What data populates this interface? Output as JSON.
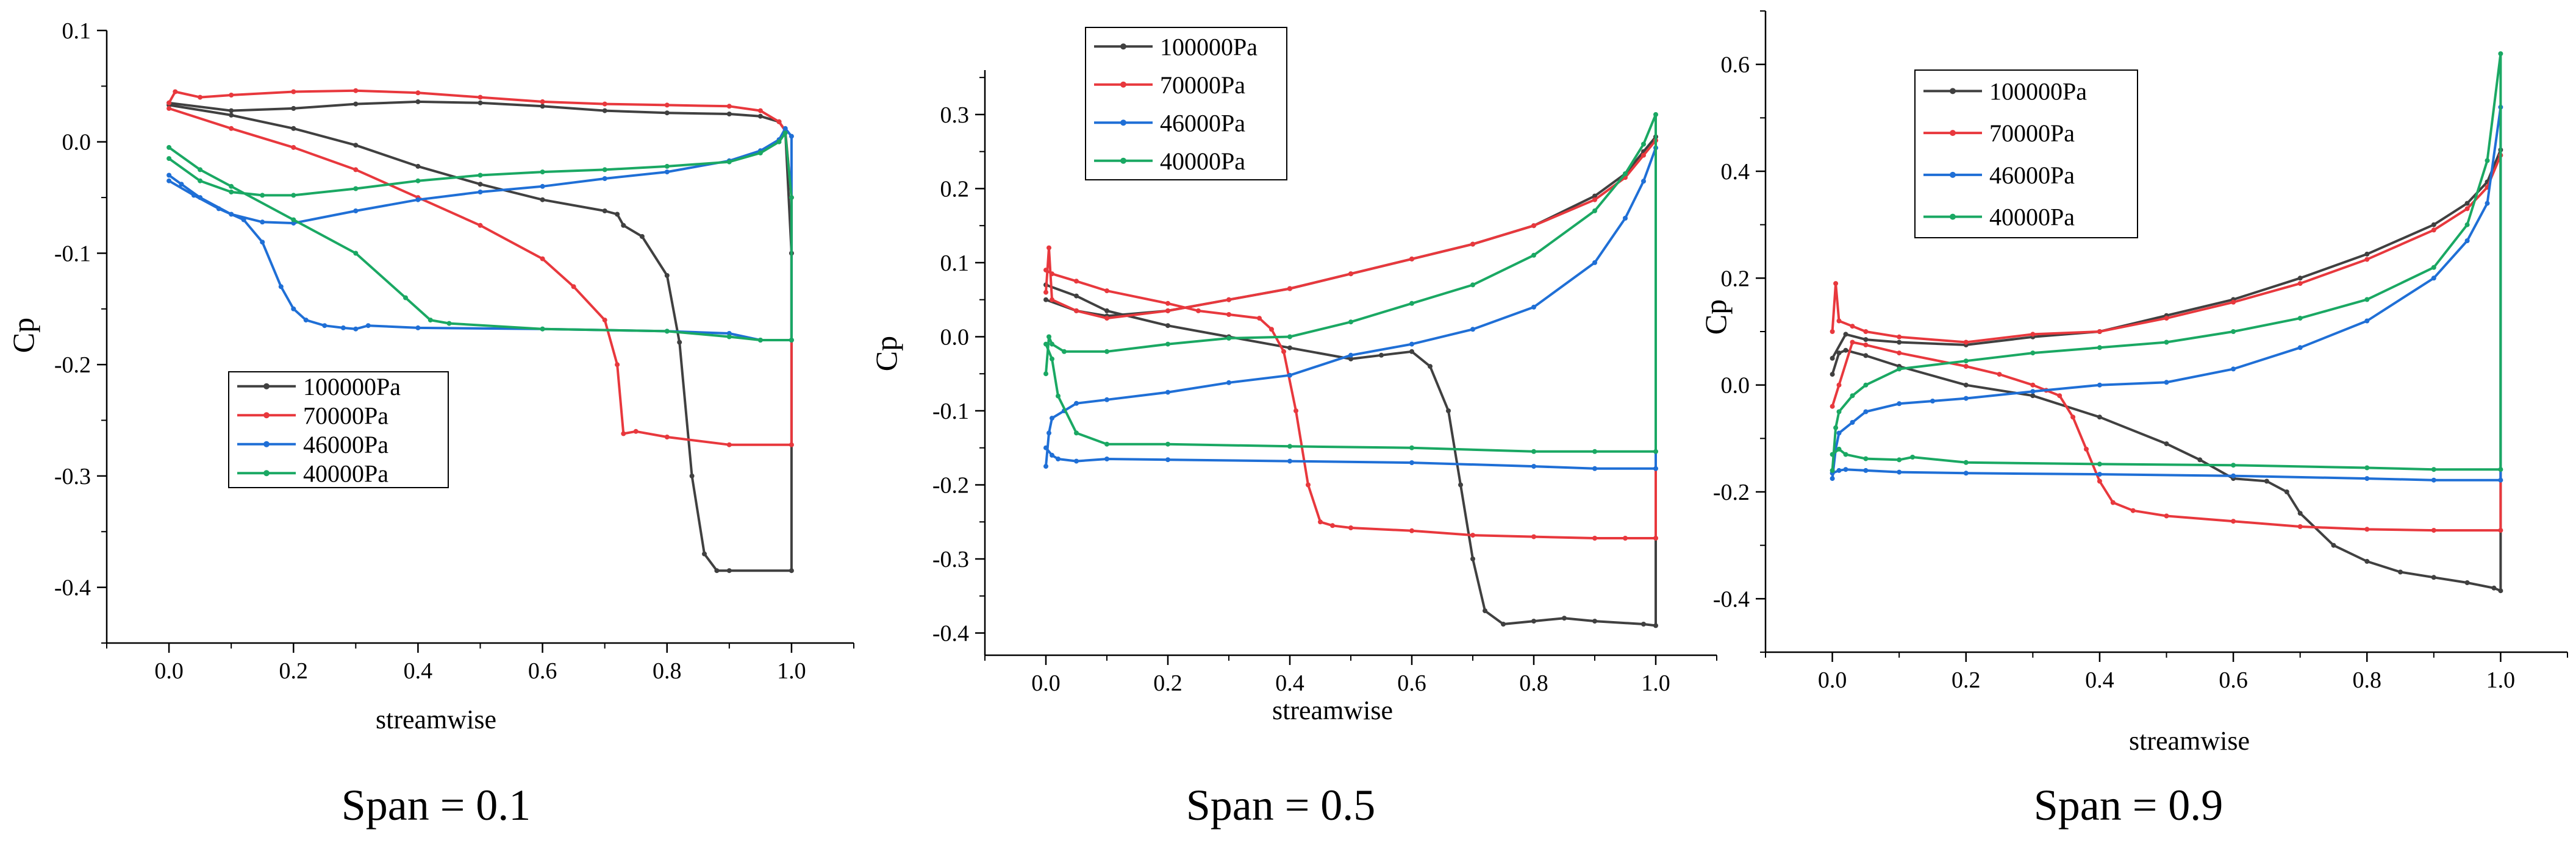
{
  "chart_data": [
    {
      "type": "line",
      "caption": "Span = 0.1",
      "xlabel": "streamwise",
      "ylabel": "Cp",
      "xlim": [
        -0.1,
        1.1
      ],
      "ylim": [
        -0.45,
        0.1
      ],
      "xticks": [
        0.0,
        0.2,
        0.4,
        0.6,
        0.8,
        1.0
      ],
      "xtick_labels": [
        "0.0",
        "0.2",
        "0.4",
        "0.6",
        "0.8",
        "1.0"
      ],
      "yticks": [
        -0.4,
        -0.3,
        -0.2,
        -0.1,
        0.0,
        0.1
      ],
      "ytick_labels": [
        "-0.4",
        "-0.3",
        "-0.2",
        "-0.1",
        "0.0",
        "0.1"
      ],
      "legend_position": "lower-center",
      "series": [
        {
          "name": "100000Pa",
          "color": "#404040",
          "x": [
            0.0,
            0.1,
            0.2,
            0.3,
            0.4,
            0.5,
            0.6,
            0.7,
            0.8,
            0.9,
            0.95,
            0.98,
            0.99,
            1.0,
            1.0,
            0.9,
            0.88,
            0.86,
            0.84,
            0.82,
            0.8,
            0.76,
            0.73,
            0.72,
            0.7,
            0.6,
            0.5,
            0.4,
            0.3,
            0.2,
            0.1,
            0.0
          ],
          "y": [
            0.035,
            0.028,
            0.03,
            0.034,
            0.036,
            0.035,
            0.032,
            0.028,
            0.026,
            0.025,
            0.023,
            0.018,
            0.01,
            -0.1,
            -0.385,
            -0.385,
            -0.385,
            -0.37,
            -0.3,
            -0.18,
            -0.12,
            -0.085,
            -0.075,
            -0.065,
            -0.062,
            -0.052,
            -0.038,
            -0.022,
            -0.003,
            0.012,
            0.024,
            0.033
          ]
        },
        {
          "name": "70000Pa",
          "color": "#e8383d",
          "x": [
            0.0,
            0.01,
            0.05,
            0.1,
            0.2,
            0.3,
            0.4,
            0.5,
            0.6,
            0.7,
            0.8,
            0.9,
            0.95,
            0.98,
            0.99,
            1.0,
            1.0,
            0.9,
            0.8,
            0.75,
            0.73,
            0.72,
            0.7,
            0.65,
            0.6,
            0.5,
            0.4,
            0.3,
            0.2,
            0.1,
            0.0
          ],
          "y": [
            0.035,
            0.045,
            0.04,
            0.042,
            0.045,
            0.046,
            0.044,
            0.04,
            0.036,
            0.034,
            0.033,
            0.032,
            0.028,
            0.018,
            0.01,
            -0.05,
            -0.272,
            -0.272,
            -0.265,
            -0.26,
            -0.262,
            -0.2,
            -0.16,
            -0.13,
            -0.105,
            -0.075,
            -0.05,
            -0.025,
            -0.005,
            0.012,
            0.03
          ]
        },
        {
          "name": "46000Pa",
          "color": "#1f6fd6",
          "x": [
            0.0,
            0.02,
            0.05,
            0.1,
            0.15,
            0.2,
            0.3,
            0.4,
            0.5,
            0.6,
            0.7,
            0.8,
            0.9,
            0.95,
            0.98,
            0.99,
            1.0,
            1.0,
            0.95,
            0.9,
            0.8,
            0.6,
            0.4,
            0.32,
            0.3,
            0.28,
            0.25,
            0.22,
            0.2,
            0.18,
            0.15,
            0.12,
            0.08,
            0.04,
            0.0
          ],
          "y": [
            -0.03,
            -0.038,
            -0.05,
            -0.065,
            -0.072,
            -0.073,
            -0.062,
            -0.052,
            -0.045,
            -0.04,
            -0.033,
            -0.027,
            -0.017,
            -0.008,
            0.002,
            0.012,
            0.005,
            -0.178,
            -0.178,
            -0.172,
            -0.17,
            -0.168,
            -0.167,
            -0.165,
            -0.168,
            -0.167,
            -0.165,
            -0.16,
            -0.15,
            -0.13,
            -0.09,
            -0.07,
            -0.06,
            -0.048,
            -0.035
          ]
        },
        {
          "name": "40000Pa",
          "color": "#1aa863",
          "x": [
            0.0,
            0.05,
            0.1,
            0.15,
            0.2,
            0.3,
            0.4,
            0.5,
            0.6,
            0.7,
            0.8,
            0.9,
            0.95,
            0.98,
            0.99,
            1.0,
            1.0,
            0.95,
            0.9,
            0.8,
            0.6,
            0.45,
            0.42,
            0.38,
            0.3,
            0.2,
            0.1,
            0.05,
            0.0
          ],
          "y": [
            -0.015,
            -0.035,
            -0.045,
            -0.048,
            -0.048,
            -0.042,
            -0.035,
            -0.03,
            -0.027,
            -0.025,
            -0.022,
            -0.018,
            -0.01,
            0.0,
            0.008,
            -0.05,
            -0.178,
            -0.178,
            -0.175,
            -0.17,
            -0.168,
            -0.163,
            -0.16,
            -0.14,
            -0.1,
            -0.07,
            -0.04,
            -0.025,
            -0.005
          ]
        }
      ]
    },
    {
      "type": "line",
      "caption": "Span = 0.5",
      "xlabel": "streamwise",
      "ylabel": "Cp",
      "xlim": [
        -0.1,
        1.1
      ],
      "ylim": [
        -0.43,
        0.36
      ],
      "xticks": [
        0.0,
        0.2,
        0.4,
        0.6,
        0.8,
        1.0
      ],
      "xtick_labels": [
        "0.0",
        "0.2",
        "0.4",
        "0.6",
        "0.8",
        "1.0"
      ],
      "yticks": [
        -0.4,
        -0.3,
        -0.2,
        -0.1,
        0.0,
        0.1,
        0.2,
        0.3
      ],
      "ytick_labels": [
        "-0.4",
        "-0.3",
        "-0.2",
        "-0.1",
        "0.0",
        "0.1",
        "0.2",
        "0.3"
      ],
      "legend_position": "top-left",
      "series": [
        {
          "name": "100000Pa",
          "color": "#404040",
          "x": [
            0.0,
            0.05,
            0.1,
            0.2,
            0.3,
            0.4,
            0.5,
            0.6,
            0.7,
            0.8,
            0.9,
            0.95,
            0.98,
            1.0,
            1.0,
            0.98,
            0.9,
            0.85,
            0.8,
            0.75,
            0.72,
            0.7,
            0.68,
            0.66,
            0.63,
            0.6,
            0.55,
            0.5,
            0.4,
            0.3,
            0.2,
            0.1,
            0.05,
            0.0
          ],
          "y": [
            0.05,
            0.035,
            0.028,
            0.035,
            0.05,
            0.065,
            0.085,
            0.105,
            0.125,
            0.15,
            0.19,
            0.22,
            0.25,
            0.27,
            -0.39,
            -0.388,
            -0.384,
            -0.38,
            -0.384,
            -0.388,
            -0.37,
            -0.3,
            -0.2,
            -0.1,
            -0.04,
            -0.02,
            -0.025,
            -0.03,
            -0.015,
            0.0,
            0.015,
            0.035,
            0.055,
            0.07
          ]
        },
        {
          "name": "70000Pa",
          "color": "#e8383d",
          "x": [
            0.0,
            0.005,
            0.01,
            0.05,
            0.1,
            0.2,
            0.3,
            0.4,
            0.5,
            0.6,
            0.7,
            0.8,
            0.9,
            0.95,
            0.98,
            1.0,
            1.0,
            0.95,
            0.9,
            0.8,
            0.7,
            0.6,
            0.5,
            0.47,
            0.45,
            0.43,
            0.41,
            0.39,
            0.37,
            0.35,
            0.3,
            0.25,
            0.2,
            0.1,
            0.05,
            0.01,
            0.0
          ],
          "y": [
            0.06,
            0.12,
            0.05,
            0.035,
            0.025,
            0.035,
            0.05,
            0.065,
            0.085,
            0.105,
            0.125,
            0.15,
            0.185,
            0.215,
            0.245,
            0.265,
            -0.272,
            -0.272,
            -0.272,
            -0.27,
            -0.268,
            -0.262,
            -0.258,
            -0.255,
            -0.25,
            -0.2,
            -0.1,
            -0.02,
            0.01,
            0.025,
            0.03,
            0.035,
            0.045,
            0.062,
            0.075,
            0.085,
            0.09
          ]
        },
        {
          "name": "46000Pa",
          "color": "#1f6fd6",
          "x": [
            0.0,
            0.005,
            0.01,
            0.03,
            0.05,
            0.1,
            0.2,
            0.3,
            0.4,
            0.5,
            0.6,
            0.7,
            0.8,
            0.9,
            0.95,
            0.98,
            1.0,
            1.0,
            0.9,
            0.8,
            0.6,
            0.4,
            0.2,
            0.1,
            0.05,
            0.02,
            0.01,
            0.0
          ],
          "y": [
            -0.175,
            -0.13,
            -0.11,
            -0.1,
            -0.09,
            -0.085,
            -0.075,
            -0.062,
            -0.052,
            -0.025,
            -0.01,
            0.01,
            0.04,
            0.1,
            0.16,
            0.21,
            0.255,
            -0.178,
            -0.178,
            -0.175,
            -0.17,
            -0.168,
            -0.166,
            -0.165,
            -0.168,
            -0.165,
            -0.16,
            -0.15
          ]
        },
        {
          "name": "40000Pa",
          "color": "#1aa863",
          "x": [
            0.0,
            0.005,
            0.01,
            0.03,
            0.1,
            0.2,
            0.3,
            0.4,
            0.5,
            0.6,
            0.7,
            0.8,
            0.9,
            0.95,
            0.98,
            1.0,
            1.0,
            0.9,
            0.8,
            0.6,
            0.4,
            0.2,
            0.1,
            0.05,
            0.02,
            0.01,
            0.0
          ],
          "y": [
            -0.05,
            0.0,
            -0.01,
            -0.02,
            -0.02,
            -0.01,
            -0.002,
            0.0,
            0.02,
            0.045,
            0.07,
            0.11,
            0.17,
            0.22,
            0.26,
            0.3,
            -0.155,
            -0.155,
            -0.155,
            -0.15,
            -0.148,
            -0.145,
            -0.145,
            -0.13,
            -0.08,
            -0.03,
            -0.01
          ]
        }
      ]
    },
    {
      "type": "line",
      "caption": "Span = 0.9",
      "xlabel": "streamwise",
      "ylabel": "Cp",
      "xlim": [
        -0.1,
        1.1
      ],
      "ylim": [
        -0.5,
        0.7
      ],
      "xticks": [
        0.0,
        0.2,
        0.4,
        0.6,
        0.8,
        1.0
      ],
      "xtick_labels": [
        "0.0",
        "0.2",
        "0.4",
        "0.6",
        "0.8",
        "1.0"
      ],
      "yticks": [
        -0.4,
        -0.2,
        0.0,
        0.2,
        0.4,
        0.6
      ],
      "ytick_labels": [
        "-0.4",
        "-0.2",
        "0.0",
        "0.2",
        "0.4",
        "0.6"
      ],
      "legend_position": "top-left",
      "series": [
        {
          "name": "100000Pa",
          "color": "#404040",
          "x": [
            0.0,
            0.02,
            0.05,
            0.1,
            0.2,
            0.3,
            0.4,
            0.5,
            0.6,
            0.7,
            0.8,
            0.9,
            0.95,
            0.98,
            0.99,
            1.0,
            1.0,
            0.99,
            0.95,
            0.9,
            0.85,
            0.8,
            0.75,
            0.7,
            0.68,
            0.65,
            0.6,
            0.55,
            0.5,
            0.4,
            0.3,
            0.2,
            0.1,
            0.05,
            0.02,
            0.01,
            0.0
          ],
          "y": [
            0.05,
            0.095,
            0.085,
            0.08,
            0.075,
            0.09,
            0.1,
            0.13,
            0.16,
            0.2,
            0.245,
            0.3,
            0.34,
            0.38,
            0.41,
            0.44,
            -0.385,
            -0.38,
            -0.37,
            -0.36,
            -0.35,
            -0.33,
            -0.3,
            -0.24,
            -0.2,
            -0.18,
            -0.175,
            -0.14,
            -0.11,
            -0.06,
            -0.02,
            0.0,
            0.035,
            0.055,
            0.065,
            0.06,
            0.02
          ]
        },
        {
          "name": "70000Pa",
          "color": "#e8383d",
          "x": [
            0.0,
            0.005,
            0.01,
            0.03,
            0.05,
            0.1,
            0.2,
            0.3,
            0.4,
            0.5,
            0.6,
            0.7,
            0.8,
            0.9,
            0.95,
            0.98,
            1.0,
            1.0,
            0.9,
            0.8,
            0.7,
            0.6,
            0.5,
            0.45,
            0.42,
            0.4,
            0.38,
            0.36,
            0.34,
            0.32,
            0.3,
            0.25,
            0.2,
            0.1,
            0.05,
            0.03,
            0.01,
            0.0
          ],
          "y": [
            0.1,
            0.19,
            0.12,
            0.11,
            0.1,
            0.09,
            0.08,
            0.095,
            0.1,
            0.125,
            0.155,
            0.19,
            0.235,
            0.29,
            0.33,
            0.37,
            0.43,
            -0.272,
            -0.272,
            -0.27,
            -0.265,
            -0.255,
            -0.245,
            -0.235,
            -0.22,
            -0.18,
            -0.12,
            -0.06,
            -0.02,
            -0.01,
            0.0,
            0.02,
            0.035,
            0.06,
            0.075,
            0.08,
            0.0,
            -0.04
          ]
        },
        {
          "name": "46000Pa",
          "color": "#1f6fd6",
          "x": [
            0.0,
            0.005,
            0.01,
            0.03,
            0.05,
            0.1,
            0.15,
            0.2,
            0.3,
            0.4,
            0.5,
            0.6,
            0.7,
            0.8,
            0.9,
            0.95,
            0.98,
            1.0,
            1.0,
            0.9,
            0.8,
            0.6,
            0.4,
            0.2,
            0.1,
            0.05,
            0.02,
            0.01,
            0.0
          ],
          "y": [
            -0.175,
            -0.12,
            -0.09,
            -0.07,
            -0.05,
            -0.035,
            -0.03,
            -0.025,
            -0.012,
            0.0,
            0.005,
            0.03,
            0.07,
            0.12,
            0.2,
            0.27,
            0.34,
            0.52,
            -0.178,
            -0.178,
            -0.175,
            -0.17,
            -0.167,
            -0.165,
            -0.163,
            -0.16,
            -0.158,
            -0.16,
            -0.165
          ]
        },
        {
          "name": "40000Pa",
          "color": "#1aa863",
          "x": [
            0.0,
            0.005,
            0.01,
            0.03,
            0.05,
            0.1,
            0.2,
            0.3,
            0.4,
            0.5,
            0.6,
            0.7,
            0.8,
            0.9,
            0.95,
            0.98,
            1.0,
            1.0,
            0.9,
            0.8,
            0.6,
            0.4,
            0.2,
            0.12,
            0.1,
            0.05,
            0.02,
            0.01,
            0.0
          ],
          "y": [
            -0.16,
            -0.08,
            -0.05,
            -0.02,
            0.0,
            0.03,
            0.045,
            0.06,
            0.07,
            0.08,
            0.1,
            0.125,
            0.16,
            0.22,
            0.3,
            0.42,
            0.62,
            -0.158,
            -0.158,
            -0.155,
            -0.15,
            -0.148,
            -0.145,
            -0.135,
            -0.14,
            -0.138,
            -0.13,
            -0.12,
            -0.13
          ]
        }
      ]
    }
  ]
}
